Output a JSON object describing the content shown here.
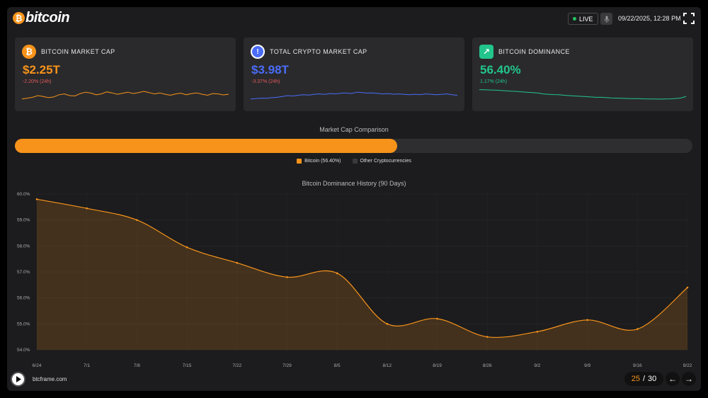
{
  "brand": {
    "logo_symbol": "₿",
    "logo_text": "bitcoin"
  },
  "header": {
    "live_label": "LIVE",
    "mic_icon": "microphone-icon",
    "datetime": "09/22/2025, 12:28 PM",
    "fullscreen_icon": "fullscreen-icon"
  },
  "cards": [
    {
      "title": "BITCOIN MARKET CAP",
      "value": "$2.25T",
      "change": "-2.20% (24h)",
      "icon": "bitcoin-icon",
      "icon_glyph": "₿",
      "color": "#f7931a",
      "change_color": "#e05a5a",
      "spark": [
        0.3,
        0.35,
        0.4,
        0.5,
        0.45,
        0.38,
        0.42,
        0.55,
        0.6,
        0.5,
        0.48,
        0.62,
        0.7,
        0.65,
        0.55,
        0.6,
        0.72,
        0.66,
        0.58,
        0.64,
        0.7,
        0.62,
        0.68,
        0.75,
        0.68,
        0.6,
        0.66,
        0.58,
        0.52,
        0.6,
        0.64,
        0.55,
        0.62,
        0.66,
        0.58,
        0.52,
        0.62,
        0.6,
        0.54,
        0.58
      ]
    },
    {
      "title": "TOTAL CRYPTO MARKET CAP",
      "value": "$3.98T",
      "change": "-3.37% (24h)",
      "icon": "info-icon",
      "icon_glyph": "!",
      "color": "#4a6cf7",
      "change_color": "#e05a5a",
      "spark": [
        0.3,
        0.32,
        0.35,
        0.34,
        0.38,
        0.4,
        0.45,
        0.5,
        0.48,
        0.52,
        0.55,
        0.53,
        0.58,
        0.6,
        0.57,
        0.62,
        0.6,
        0.64,
        0.66,
        0.62,
        0.7,
        0.68,
        0.65,
        0.66,
        0.63,
        0.6,
        0.62,
        0.58,
        0.6,
        0.57,
        0.55,
        0.58,
        0.56,
        0.6,
        0.58,
        0.55,
        0.57,
        0.6,
        0.55,
        0.52
      ]
    },
    {
      "title": "BITCOIN DOMINANCE",
      "value": "56.40%",
      "change": "1.17% (24h)",
      "icon": "trending-up-icon",
      "icon_glyph": "↗",
      "color": "#22c58b",
      "change_color": "#22c58b",
      "spark": [
        0.85,
        0.84,
        0.83,
        0.82,
        0.8,
        0.78,
        0.76,
        0.75,
        0.72,
        0.7,
        0.68,
        0.66,
        0.6,
        0.58,
        0.56,
        0.55,
        0.52,
        0.5,
        0.48,
        0.46,
        0.44,
        0.42,
        0.4,
        0.4,
        0.38,
        0.36,
        0.35,
        0.34,
        0.33,
        0.32,
        0.32,
        0.31,
        0.3,
        0.3,
        0.29,
        0.3,
        0.31,
        0.33,
        0.36,
        0.45
      ]
    }
  ],
  "comparison": {
    "title": "Market Cap Comparison",
    "bitcoin_share": 56.4,
    "bitcoin_color": "#f7931a",
    "other_color": "#2e2e30",
    "legend": [
      {
        "label": "Bitcoin (56.40%)",
        "color": "#f7931a"
      },
      {
        "label": "Other Cryptocurrencies",
        "color": "#3a3a3c"
      }
    ]
  },
  "chart_data": {
    "type": "area",
    "title": "Bitcoin Dominance History (90 Days)",
    "categories": [
      "6/24",
      "7/1",
      "7/8",
      "7/15",
      "7/22",
      "7/29",
      "8/5",
      "8/12",
      "8/19",
      "8/26",
      "9/2",
      "9/9",
      "9/16",
      "9/22"
    ],
    "series": [
      {
        "name": "Bitcoin",
        "color": "#f7931a",
        "values": [
          59.8,
          59.45,
          59.0,
          57.95,
          57.35,
          56.8,
          56.95,
          55.0,
          55.2,
          54.5,
          54.7,
          55.15,
          54.8,
          56.4
        ]
      }
    ],
    "yticks": [
      "54.0%",
      "55.0%",
      "56.0%",
      "57.0%",
      "58.0%",
      "59.0%",
      "60.0%"
    ],
    "ylim": [
      54,
      60
    ],
    "grid": true,
    "legend": "none"
  },
  "footer": {
    "play_icon": "play-icon",
    "domain": "btcframe.com",
    "page_current": "25",
    "page_sep": "/",
    "page_total": "30",
    "prev_icon": "arrow-left-icon",
    "next_icon": "arrow-right-icon",
    "prev_glyph": "←",
    "next_glyph": "→"
  }
}
